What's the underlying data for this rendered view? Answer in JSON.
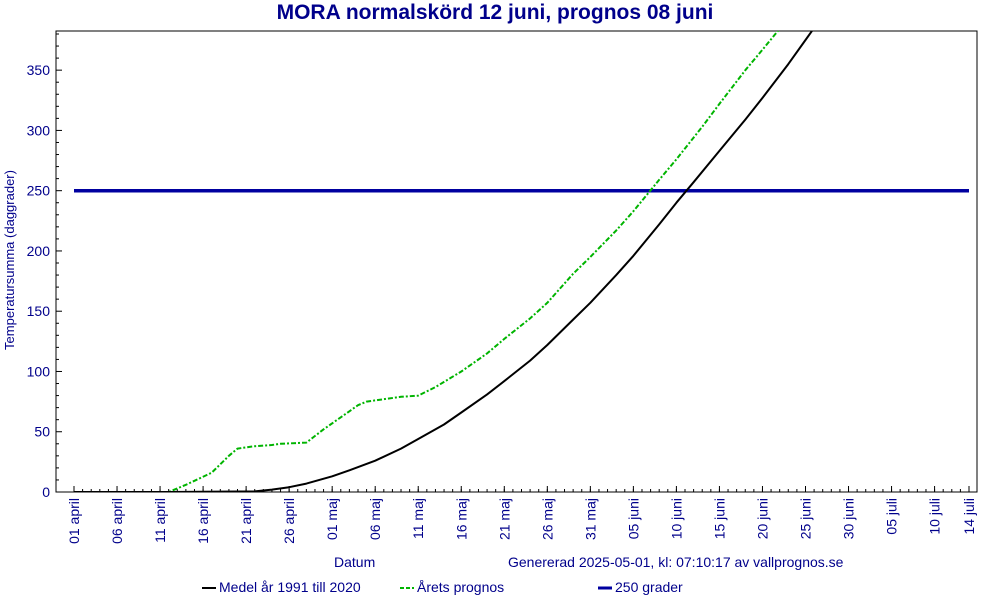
{
  "title": "MORA normalskörd 12 juni, prognos 08 juni",
  "generated": "Genererad 2025-05-01, kl: 07:10:17 av vallprognos.se",
  "colors": {
    "text": "#00008b",
    "medel": "#000000",
    "prognos": "#00b400",
    "threshold": "#0000a0",
    "axis": "#000000"
  },
  "chart_data": {
    "type": "line",
    "title": "MORA normalskörd 12 juni, prognos 08 juni",
    "xlabel": "Datum",
    "ylabel": "Temperatursumma (daggrader)",
    "xlim": [
      "2025-04-01",
      "2025-07-14"
    ],
    "ylim": [
      0,
      380
    ],
    "yticks": [
      0,
      50,
      100,
      150,
      200,
      250,
      300,
      350
    ],
    "xticks": [
      {
        "date": "2025-04-01",
        "label": "01 april"
      },
      {
        "date": "2025-04-06",
        "label": "06 april"
      },
      {
        "date": "2025-04-11",
        "label": "11 april"
      },
      {
        "date": "2025-04-16",
        "label": "16 april"
      },
      {
        "date": "2025-04-21",
        "label": "21 april"
      },
      {
        "date": "2025-04-26",
        "label": "26 april"
      },
      {
        "date": "2025-05-01",
        "label": "01 maj"
      },
      {
        "date": "2025-05-06",
        "label": "06 maj"
      },
      {
        "date": "2025-05-11",
        "label": "11 maj"
      },
      {
        "date": "2025-05-16",
        "label": "16 maj"
      },
      {
        "date": "2025-05-21",
        "label": "21 maj"
      },
      {
        "date": "2025-05-26",
        "label": "26 maj"
      },
      {
        "date": "2025-05-31",
        "label": "31 maj"
      },
      {
        "date": "2025-06-05",
        "label": "05 juni"
      },
      {
        "date": "2025-06-10",
        "label": "10 juni"
      },
      {
        "date": "2025-06-15",
        "label": "15 juni"
      },
      {
        "date": "2025-06-20",
        "label": "20 juni"
      },
      {
        "date": "2025-06-25",
        "label": "25 juni"
      },
      {
        "date": "2025-06-30",
        "label": "30 juni"
      },
      {
        "date": "2025-07-05",
        "label": "05 juli"
      },
      {
        "date": "2025-07-10",
        "label": "10 juli"
      },
      {
        "date": "2025-07-14",
        "label": "14 juli"
      }
    ],
    "grid": false,
    "legend_position": "bottom",
    "series": [
      {
        "name": "Medel år 1991 till 2020",
        "style": "solid",
        "color": "#000000",
        "points": [
          [
            "2025-04-01",
            0
          ],
          [
            "2025-04-12",
            0
          ],
          [
            "2025-04-22",
            0.5
          ],
          [
            "2025-04-24",
            2
          ],
          [
            "2025-04-26",
            4
          ],
          [
            "2025-04-28",
            7
          ],
          [
            "2025-05-01",
            13
          ],
          [
            "2025-05-03",
            18
          ],
          [
            "2025-05-06",
            26
          ],
          [
            "2025-05-09",
            36
          ],
          [
            "2025-05-11",
            44
          ],
          [
            "2025-05-14",
            56
          ],
          [
            "2025-05-16",
            66
          ],
          [
            "2025-05-19",
            81
          ],
          [
            "2025-05-21",
            92
          ],
          [
            "2025-05-24",
            109
          ],
          [
            "2025-05-26",
            122
          ],
          [
            "2025-05-29",
            143
          ],
          [
            "2025-05-31",
            157
          ],
          [
            "2025-06-03",
            180
          ],
          [
            "2025-06-05",
            196
          ],
          [
            "2025-06-08",
            222
          ],
          [
            "2025-06-10",
            240
          ],
          [
            "2025-06-12",
            257
          ],
          [
            "2025-06-15",
            283
          ],
          [
            "2025-06-18",
            309
          ],
          [
            "2025-06-20",
            327
          ],
          [
            "2025-06-23",
            355
          ],
          [
            "2025-06-25",
            375
          ],
          [
            "2025-06-27",
            395
          ]
        ]
      },
      {
        "name": "Årets prognos",
        "style": "dashed",
        "color": "#00b400",
        "points": [
          [
            "2025-04-01",
            0
          ],
          [
            "2025-04-12",
            0
          ],
          [
            "2025-04-14",
            6
          ],
          [
            "2025-04-17",
            16
          ],
          [
            "2025-04-19",
            30
          ],
          [
            "2025-04-20",
            36
          ],
          [
            "2025-04-22",
            38
          ],
          [
            "2025-04-24",
            39
          ],
          [
            "2025-04-25",
            40
          ],
          [
            "2025-04-28",
            41
          ],
          [
            "2025-04-30",
            52
          ],
          [
            "2025-05-02",
            62
          ],
          [
            "2025-05-04",
            72
          ],
          [
            "2025-05-05",
            75
          ],
          [
            "2025-05-07",
            77
          ],
          [
            "2025-05-09",
            79
          ],
          [
            "2025-05-11",
            80
          ],
          [
            "2025-05-13",
            87
          ],
          [
            "2025-05-16",
            100
          ],
          [
            "2025-05-19",
            115
          ],
          [
            "2025-05-21",
            127
          ],
          [
            "2025-05-24",
            144
          ],
          [
            "2025-05-26",
            157
          ],
          [
            "2025-05-29",
            181
          ],
          [
            "2025-05-31",
            195
          ],
          [
            "2025-06-03",
            217
          ],
          [
            "2025-06-05",
            233
          ],
          [
            "2025-06-08",
            259
          ],
          [
            "2025-06-10",
            276
          ],
          [
            "2025-06-13",
            303
          ],
          [
            "2025-06-15",
            322
          ],
          [
            "2025-06-18",
            350
          ],
          [
            "2025-06-20",
            367
          ],
          [
            "2025-06-23",
            393
          ]
        ]
      },
      {
        "name": "250 grader",
        "style": "solid-thick",
        "color": "#0000a0",
        "points": [
          [
            "2025-04-01",
            250
          ],
          [
            "2025-07-14",
            250
          ]
        ]
      }
    ]
  }
}
